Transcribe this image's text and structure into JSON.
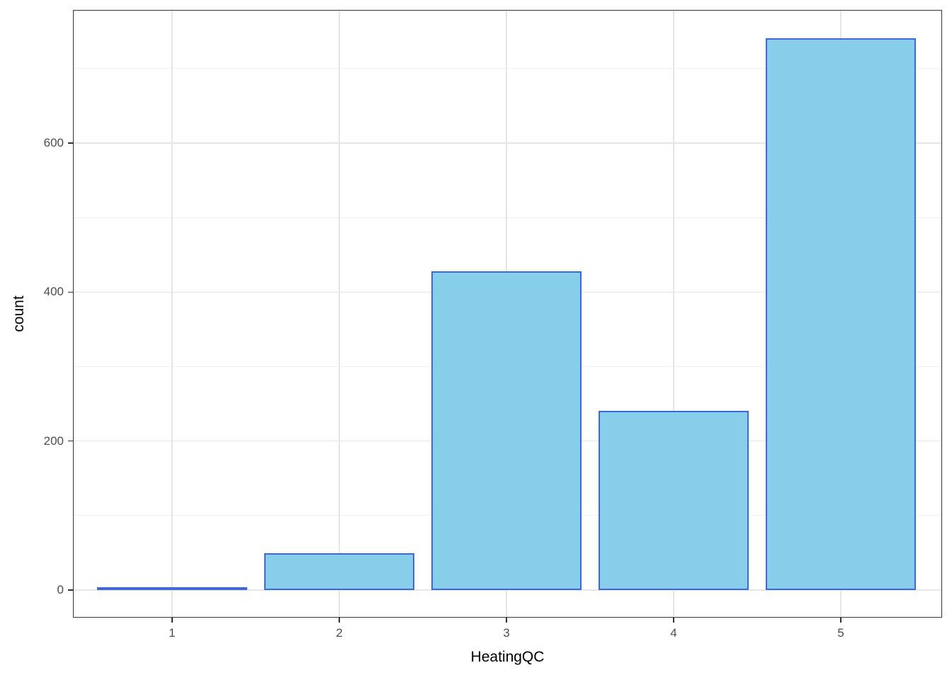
{
  "chart_data": {
    "type": "bar",
    "title": "",
    "xlabel": "HeatingQC",
    "ylabel": "count",
    "categories": [
      1,
      2,
      3,
      4,
      5
    ],
    "values": [
      1,
      49,
      428,
      241,
      741
    ],
    "bar_width": 0.9,
    "x_tick_labels": [
      "1",
      "2",
      "3",
      "4",
      "5"
    ],
    "x_tick_positions": [
      1,
      2,
      3,
      4,
      5
    ],
    "y_tick_labels": [
      "0",
      "200",
      "400",
      "600"
    ],
    "y_tick_positions": [
      0,
      200,
      400,
      600
    ],
    "y_minor_gridlines": [
      100,
      300,
      500,
      700
    ],
    "xlim": [
      0.407,
      5.606
    ],
    "ylim": [
      -37.1,
      778.7
    ],
    "grid": {
      "x_major": true,
      "x_minor": false,
      "y_major": true,
      "y_minor": true
    },
    "legend": "none",
    "colors": {
      "bar_fill": "#87CEEB",
      "bar_stroke": "#3D68DF",
      "grid_major": "#E6E6E6",
      "grid_minor": "#F1F1F1",
      "panel_border": "#333333",
      "panel_background": "#FFFFFF",
      "tick_mark": "#333333",
      "tick_label": "#4D4D4D",
      "axis_title": "#000000",
      "figure_background": "#FFFFFF"
    }
  }
}
